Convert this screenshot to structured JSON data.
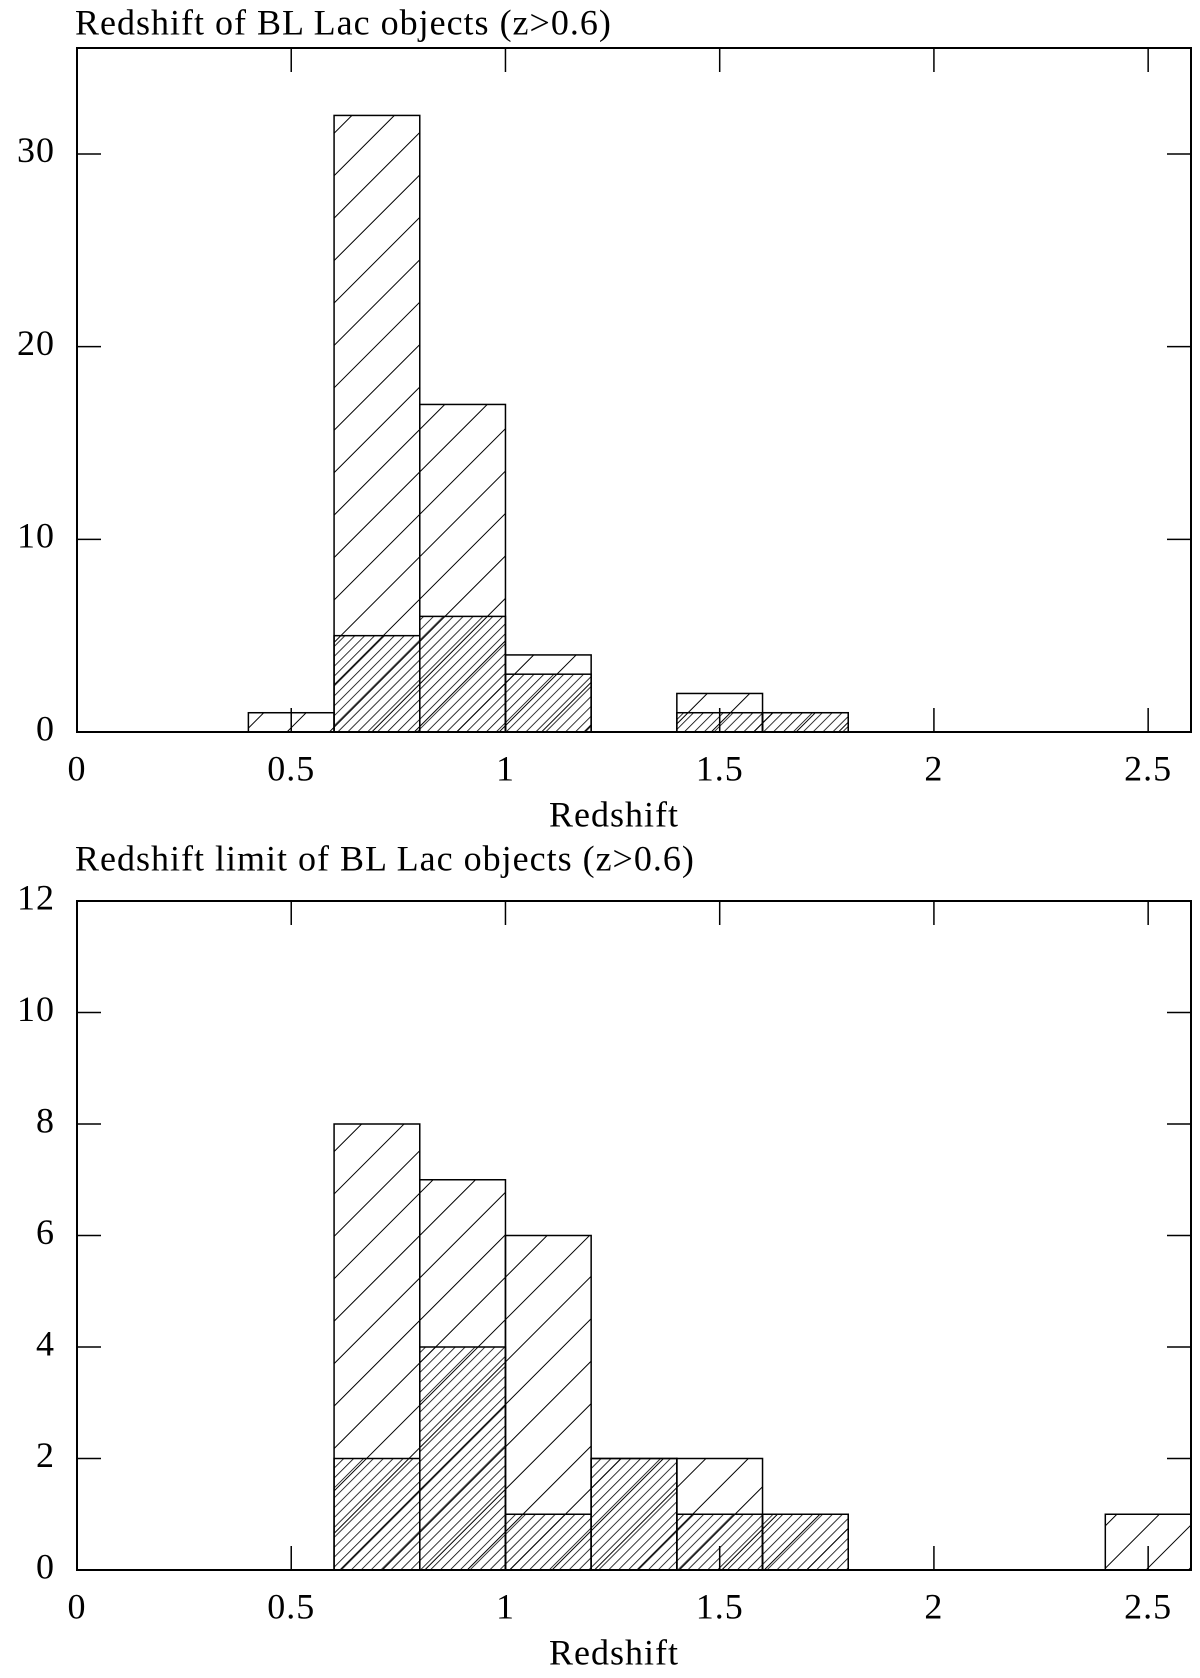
{
  "chart_data": [
    {
      "type": "histogram",
      "title": "Redshift of BL Lac objects (z>0.6)",
      "x_label": "Redshift",
      "bins": [
        0,
        0.2,
        0.4,
        0.6,
        0.8,
        1.0,
        1.2,
        1.4,
        1.6,
        1.8,
        2.0,
        2.2,
        2.4,
        2.6
      ],
      "series": [
        {
          "color": "#000000",
          "values": [
            0,
            0,
            1,
            32,
            17,
            4,
            0,
            2,
            1,
            0,
            0,
            0,
            0
          ]
        },
        {
          "color": "#000000",
          "values": [
            0,
            0,
            0,
            5,
            6,
            3,
            0,
            1,
            1,
            0,
            0,
            0,
            0
          ]
        }
      ],
      "xlim": [
        0,
        2.6
      ],
      "xticks": [
        0,
        0.5,
        1,
        1.5,
        2,
        2.5
      ],
      "ylim": [
        0,
        35.5
      ],
      "yticks": [
        0,
        10,
        20,
        30
      ]
    },
    {
      "type": "histogram",
      "title": "Redshift limit of BL Lac objects (z>0.6)",
      "x_label": "Redshift",
      "bins": [
        0,
        0.2,
        0.4,
        0.6,
        0.8,
        1.0,
        1.2,
        1.4,
        1.6,
        1.8,
        2.0,
        2.2,
        2.4,
        2.6
      ],
      "series": [
        {
          "color": "#000000",
          "values": [
            0,
            0,
            0,
            8,
            7,
            6,
            2,
            2,
            1,
            0,
            0,
            0,
            1
          ]
        },
        {
          "color": "#000000",
          "values": [
            0,
            0,
            0,
            2,
            4,
            1,
            2,
            1,
            1,
            0,
            0,
            0,
            0
          ]
        }
      ],
      "xlim": [
        0,
        2.6
      ],
      "xticks": [
        0,
        0.5,
        1,
        1.5,
        2,
        2.5
      ],
      "ylim": [
        0,
        12
      ],
      "yticks": [
        0,
        2,
        4,
        6,
        8,
        10,
        12
      ]
    }
  ]
}
